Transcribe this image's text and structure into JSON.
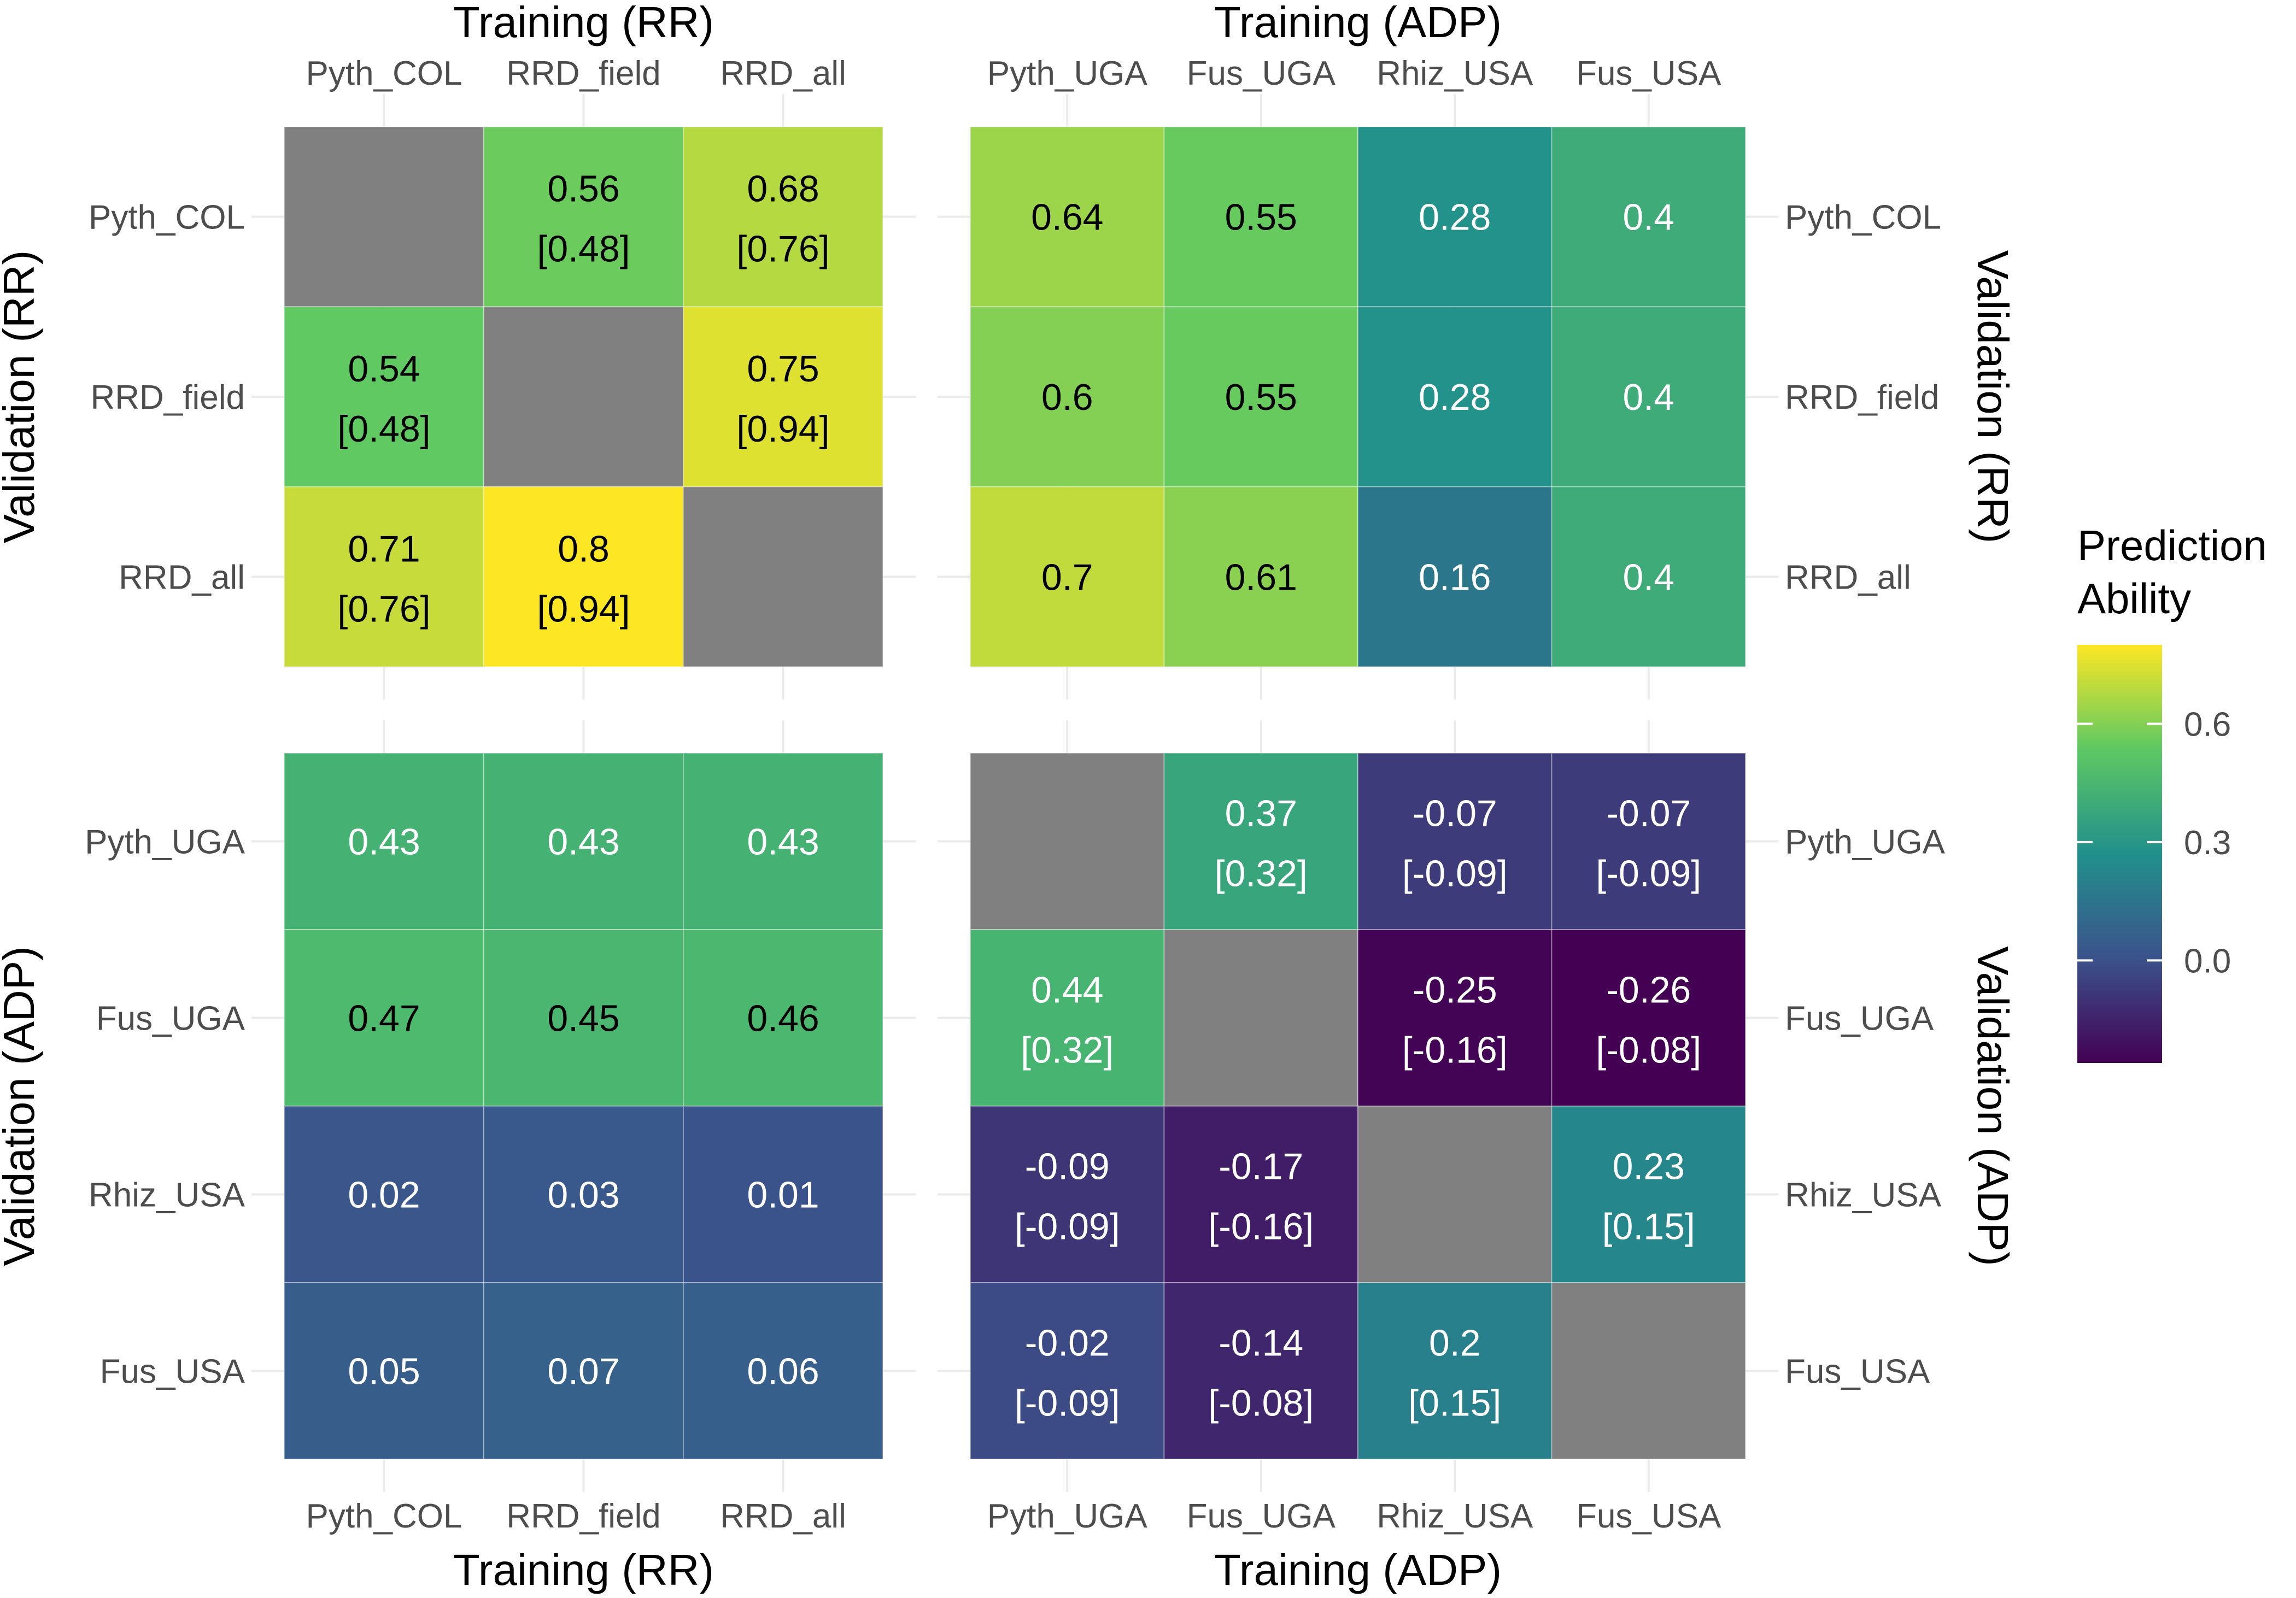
{
  "chart_data": {
    "type": "heatmap",
    "legend": {
      "title_lines": [
        "Prediction",
        "Ability"
      ],
      "ticks": [
        {
          "value": 0.6,
          "label": "0.6"
        },
        {
          "value": 0.3,
          "label": "0.3"
        },
        {
          "value": 0.0,
          "label": "0.0"
        }
      ],
      "range": [
        -0.26,
        0.8
      ],
      "colors": [
        "#440154",
        "#3b528b",
        "#21908c",
        "#5dc863",
        "#fde725"
      ],
      "na_color": "#808080"
    },
    "panels": [
      {
        "name": "rr-rr",
        "top_title": "Training (RR)",
        "bottom_title": "",
        "left_title": "Validation (RR)",
        "right_title": "",
        "top_ticks": true,
        "bottom_ticks": false,
        "left_ticks": true,
        "right_ticks": false,
        "columns": [
          "Pyth_COL",
          "RRD_field",
          "RRD_all"
        ],
        "rows": [
          "Pyth_COL",
          "RRD_field",
          "RRD_all"
        ],
        "cells": [
          [
            {
              "v": null,
              "label": null
            },
            {
              "v": 0.56,
              "label": "0.56",
              "sub": "[0.48]"
            },
            {
              "v": 0.68,
              "label": "0.68",
              "sub": "[0.76]"
            }
          ],
          [
            {
              "v": 0.54,
              "label": "0.54",
              "sub": "[0.48]"
            },
            {
              "v": null,
              "label": null
            },
            {
              "v": 0.75,
              "label": "0.75",
              "sub": "[0.94]"
            }
          ],
          [
            {
              "v": 0.71,
              "label": "0.71",
              "sub": "[0.76]"
            },
            {
              "v": 0.8,
              "label": "0.8",
              "sub": "[0.94]"
            },
            {
              "v": null,
              "label": null
            }
          ]
        ]
      },
      {
        "name": "adp-rr",
        "top_title": "Training (ADP)",
        "bottom_title": "",
        "left_title": "",
        "right_title": "Validation (RR)",
        "top_ticks": true,
        "bottom_ticks": false,
        "left_ticks": false,
        "right_ticks": true,
        "columns": [
          "Pyth_UGA",
          "Fus_UGA",
          "Rhiz_USA",
          "Fus_USA"
        ],
        "rows": [
          "Pyth_COL",
          "RRD_field",
          "RRD_all"
        ],
        "cells": [
          [
            {
              "v": 0.64,
              "label": "0.64"
            },
            {
              "v": 0.55,
              "label": "0.55"
            },
            {
              "v": 0.28,
              "label": "0.28"
            },
            {
              "v": 0.4,
              "label": "0.4"
            }
          ],
          [
            {
              "v": 0.6,
              "label": "0.6"
            },
            {
              "v": 0.55,
              "label": "0.55"
            },
            {
              "v": 0.28,
              "label": "0.28"
            },
            {
              "v": 0.4,
              "label": "0.4"
            }
          ],
          [
            {
              "v": 0.7,
              "label": "0.7"
            },
            {
              "v": 0.61,
              "label": "0.61"
            },
            {
              "v": 0.16,
              "label": "0.16"
            },
            {
              "v": 0.4,
              "label": "0.4"
            }
          ]
        ]
      },
      {
        "name": "rr-adp",
        "top_title": "",
        "bottom_title": "Training (RR)",
        "left_title": "Validation (ADP)",
        "right_title": "",
        "top_ticks": false,
        "bottom_ticks": true,
        "left_ticks": true,
        "right_ticks": false,
        "columns": [
          "Pyth_COL",
          "RRD_field",
          "RRD_all"
        ],
        "rows": [
          "Pyth_UGA",
          "Fus_UGA",
          "Rhiz_USA",
          "Fus_USA"
        ],
        "cells": [
          [
            {
              "v": 0.43,
              "label": "0.43"
            },
            {
              "v": 0.43,
              "label": "0.43"
            },
            {
              "v": 0.43,
              "label": "0.43"
            }
          ],
          [
            {
              "v": 0.47,
              "label": "0.47"
            },
            {
              "v": 0.45,
              "label": "0.45"
            },
            {
              "v": 0.46,
              "label": "0.46"
            }
          ],
          [
            {
              "v": 0.02,
              "label": "0.02"
            },
            {
              "v": 0.03,
              "label": "0.03"
            },
            {
              "v": 0.01,
              "label": "0.01"
            }
          ],
          [
            {
              "v": 0.05,
              "label": "0.05"
            },
            {
              "v": 0.07,
              "label": "0.07"
            },
            {
              "v": 0.06,
              "label": "0.06"
            }
          ]
        ]
      },
      {
        "name": "adp-adp",
        "top_title": "",
        "bottom_title": "Training (ADP)",
        "left_title": "",
        "right_title": "Validation (ADP)",
        "top_ticks": false,
        "bottom_ticks": true,
        "left_ticks": false,
        "right_ticks": true,
        "columns": [
          "Pyth_UGA",
          "Fus_UGA",
          "Rhiz_USA",
          "Fus_USA"
        ],
        "rows": [
          "Pyth_UGA",
          "Fus_UGA",
          "Rhiz_USA",
          "Fus_USA"
        ],
        "cells": [
          [
            {
              "v": null,
              "label": null
            },
            {
              "v": 0.37,
              "label": "0.37",
              "sub": "[0.32]"
            },
            {
              "v": -0.07,
              "label": "-0.07",
              "sub": "[-0.09]"
            },
            {
              "v": -0.07,
              "label": "-0.07",
              "sub": "[-0.09]"
            }
          ],
          [
            {
              "v": 0.44,
              "label": "0.44",
              "sub": "[0.32]"
            },
            {
              "v": null,
              "label": null
            },
            {
              "v": -0.25,
              "label": "-0.25",
              "sub": "[-0.16]"
            },
            {
              "v": -0.26,
              "label": "-0.26",
              "sub": "[-0.08]"
            }
          ],
          [
            {
              "v": -0.09,
              "label": "-0.09",
              "sub": "[-0.09]"
            },
            {
              "v": -0.17,
              "label": "-0.17",
              "sub": "[-0.16]"
            },
            {
              "v": null,
              "label": null
            },
            {
              "v": 0.23,
              "label": "0.23",
              "sub": "[0.15]"
            }
          ],
          [
            {
              "v": -0.02,
              "label": "-0.02",
              "sub": "[-0.09]"
            },
            {
              "v": -0.14,
              "label": "-0.14",
              "sub": "[-0.08]"
            },
            {
              "v": 0.2,
              "label": "0.2",
              "sub": "[0.15]"
            },
            {
              "v": null,
              "label": null
            }
          ]
        ]
      }
    ]
  }
}
